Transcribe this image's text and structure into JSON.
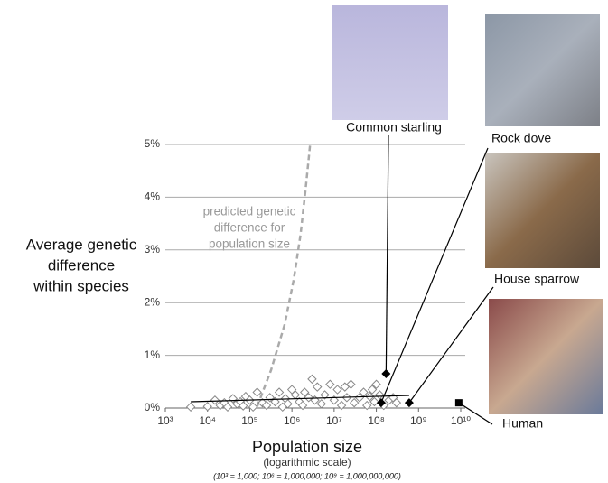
{
  "chart_data": {
    "type": "scatter",
    "y_label": [
      "Average genetic",
      "difference",
      "within species"
    ],
    "x_label": "Population size",
    "x_sublabel": "(logarithmic scale)",
    "x_note": "(10³ = 1,000; 10⁶ = 1,000,000; 10⁹ = 1,000,000,000)",
    "annotation": [
      "predicted genetic",
      "difference for",
      "population size"
    ],
    "xscale": "log",
    "grid": "y",
    "xlim": [
      1000,
      10000000000
    ],
    "xticks": [
      {
        "value": 1000,
        "label": "10³"
      },
      {
        "value": 10000,
        "label": "10⁴"
      },
      {
        "value": 100000,
        "label": "10⁵"
      },
      {
        "value": 1000000,
        "label": "10⁶"
      },
      {
        "value": 10000000,
        "label": "10⁷"
      },
      {
        "value": 100000000,
        "label": "10⁸"
      },
      {
        "value": 1000000000,
        "label": "10⁹"
      },
      {
        "value": 10000000000,
        "label": "10¹⁰"
      }
    ],
    "ylim": [
      0,
      5
    ],
    "yticks": [
      {
        "value": 0,
        "label": "0%"
      },
      {
        "value": 1,
        "label": "1%"
      },
      {
        "value": 2,
        "label": "2%"
      },
      {
        "value": 3,
        "label": "3%"
      },
      {
        "value": 4,
        "label": "4%"
      },
      {
        "value": 5,
        "label": "5%"
      }
    ],
    "points": {
      "color": "#888888",
      "x": [
        4000,
        10000,
        15000,
        20000,
        25000,
        30000,
        40000,
        50000,
        60000,
        70000,
        80000,
        100000,
        120000,
        150000,
        200000,
        250000,
        300000,
        400000,
        500000,
        600000,
        700000,
        800000,
        1000000,
        1200000,
        1500000,
        1800000,
        2000000,
        2500000,
        3000000,
        3500000,
        4000000,
        5000000,
        6000000,
        8000000,
        10000000,
        12000000,
        15000000,
        18000000,
        20000000,
        25000000,
        30000000,
        40000000,
        50000000,
        60000000,
        70000000,
        80000000,
        90000000,
        100000000,
        120000000,
        150000000,
        200000000,
        250000000,
        300000000
      ],
      "values": [
        0.02,
        0.03,
        0.15,
        0.05,
        0.1,
        0.02,
        0.18,
        0.08,
        0.12,
        0.04,
        0.22,
        0.15,
        0.02,
        0.3,
        0.1,
        0.05,
        0.2,
        0.12,
        0.3,
        0.02,
        0.18,
        0.08,
        0.35,
        0.25,
        0.12,
        0.05,
        0.3,
        0.2,
        0.55,
        0.15,
        0.4,
        0.08,
        0.25,
        0.45,
        0.15,
        0.35,
        0.05,
        0.4,
        0.2,
        0.45,
        0.1,
        0.2,
        0.3,
        0.05,
        0.22,
        0.35,
        0.12,
        0.45,
        0.25,
        0.05,
        0.15,
        0.2,
        0.1
      ]
    },
    "fit": {
      "color": "#000000",
      "x": [
        4000,
        600000000
      ],
      "values": [
        0.12,
        0.24
      ]
    },
    "prediction": {
      "color": "#aaaaaa",
      "x": [
        150000,
        320000,
        670000,
        1100000,
        1600000,
        2100000,
        2700000
      ],
      "values": [
        0.03,
        0.72,
        1.58,
        2.43,
        3.29,
        4.14,
        5
      ]
    },
    "highlights": [
      {
        "label": "Common starling",
        "marker": "diamond",
        "x": 170000000,
        "value": 0.65
      },
      {
        "label": "Rock dove",
        "marker": "diamond",
        "x": 130000000,
        "value": 0.1
      },
      {
        "label": "House sparrow",
        "marker": "diamond",
        "x": 600000000,
        "value": 0.1
      },
      {
        "label": "Human",
        "marker": "square",
        "x": 9000000000,
        "value": 0.1
      }
    ]
  }
}
